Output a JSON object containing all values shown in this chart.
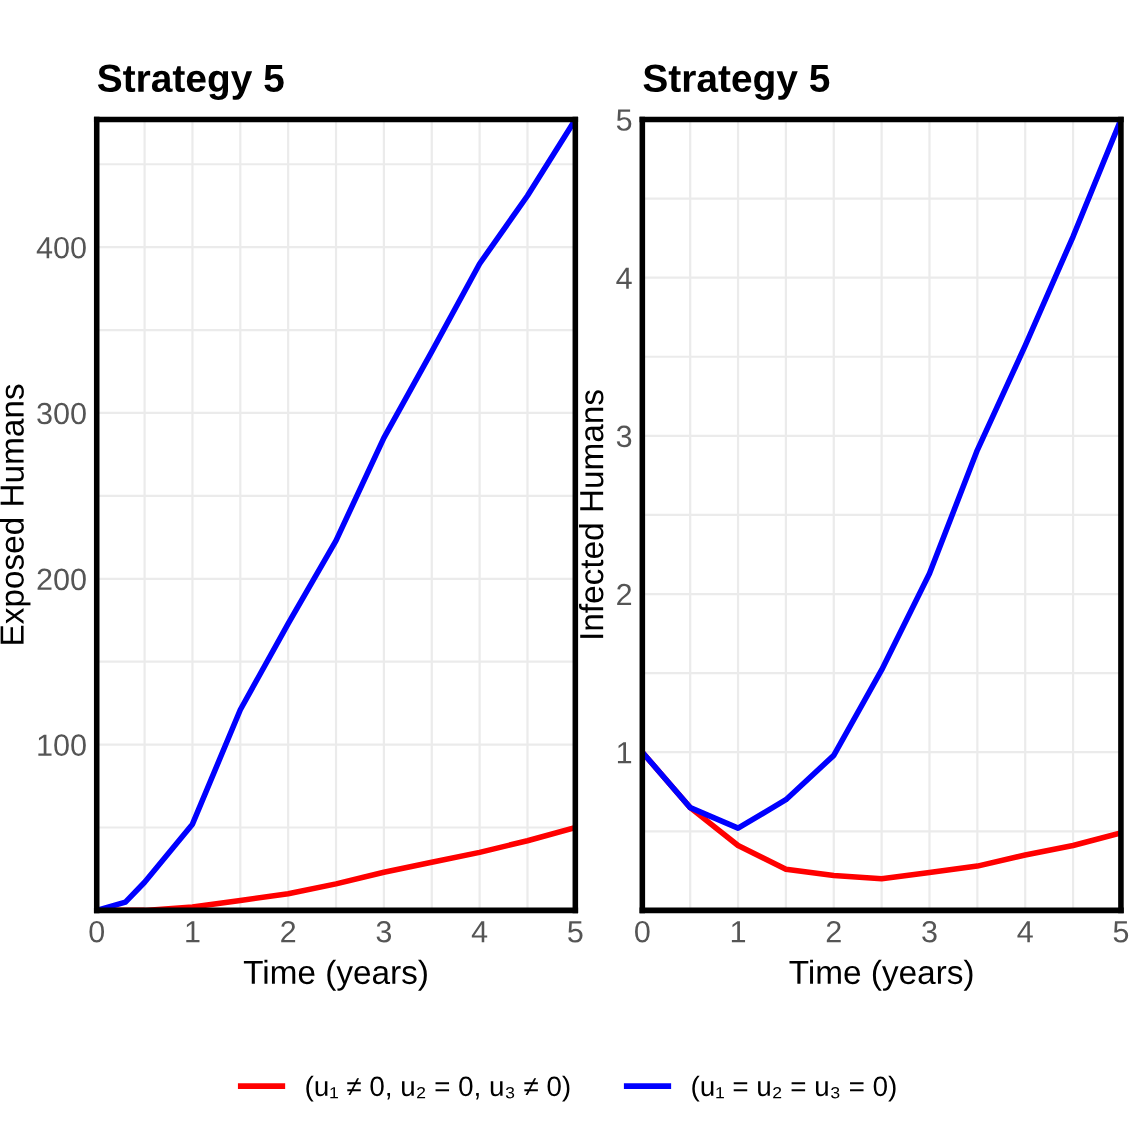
{
  "chart_data": [
    {
      "type": "line",
      "title": "Strategy 5",
      "xlabel": "Time (years)",
      "ylabel": "Exposed Humans",
      "xlim": [
        0,
        5
      ],
      "ylim": [
        0,
        477
      ],
      "xticks": [
        0,
        1,
        2,
        3,
        4,
        5
      ],
      "yticks": [
        100,
        200,
        300,
        400
      ],
      "grid": true,
      "legend": false,
      "series": [
        {
          "color": "#ff0000",
          "x": [
            0,
            0.5,
            1,
            1.5,
            2,
            2.5,
            3,
            3.5,
            4,
            4.5,
            5
          ],
          "values": [
            0,
            0,
            2,
            6,
            10,
            16,
            23,
            29,
            35,
            42,
            50
          ]
        },
        {
          "color": "#0000ff",
          "x": [
            0,
            0.3,
            0.5,
            1,
            1.5,
            2,
            2.5,
            3,
            3.5,
            4,
            4.5,
            5
          ],
          "values": [
            0,
            5,
            17,
            52,
            121,
            173,
            223,
            285,
            337,
            390,
            431,
            477
          ]
        }
      ]
    },
    {
      "type": "line",
      "title": "Strategy 5",
      "xlabel": "Time (years)",
      "ylabel": "Infected Humans",
      "xlim": [
        0,
        5
      ],
      "ylim": [
        0,
        5
      ],
      "xticks": [
        0,
        1,
        2,
        3,
        4,
        5
      ],
      "yticks": [
        1,
        2,
        3,
        4,
        5
      ],
      "grid": true,
      "legend": "bottom",
      "series": [
        {
          "name": "(u₁ ≠ 0, u₂ = 0, u₃ ≠ 0)",
          "color": "#ff0000",
          "x": [
            0,
            0.5,
            1,
            1.5,
            2,
            2.5,
            3,
            3.5,
            4,
            4.5,
            5
          ],
          "values": [
            1.0,
            0.65,
            0.41,
            0.26,
            0.22,
            0.2,
            0.24,
            0.28,
            0.35,
            0.41,
            0.49
          ]
        },
        {
          "name": "(u₁ = u₂ = u₃ = 0)",
          "color": "#0000ff",
          "x": [
            0,
            0.5,
            1,
            1.5,
            2,
            2.5,
            3,
            3.5,
            4,
            4.5,
            5
          ],
          "values": [
            1.0,
            0.65,
            0.52,
            0.7,
            0.98,
            1.52,
            2.13,
            2.91,
            3.57,
            4.26,
            5.0
          ]
        }
      ]
    }
  ]
}
